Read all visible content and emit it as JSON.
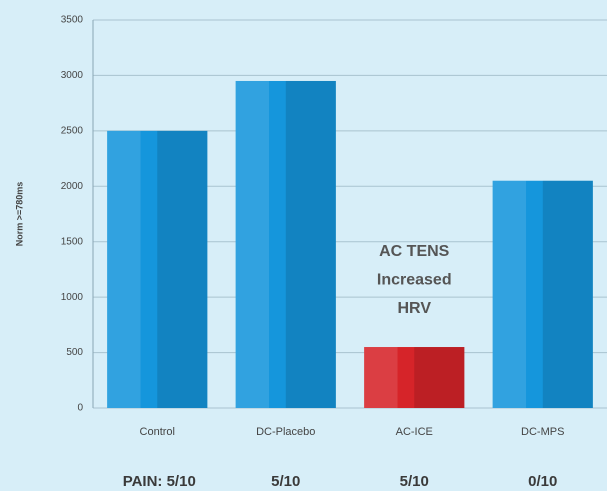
{
  "chart_data": {
    "type": "bar",
    "y_label": "Norm >=780ms",
    "categories": [
      "Control",
      "DC-Placebo",
      "AC-ICE",
      "DC-MPS"
    ],
    "values": [
      2500,
      2950,
      550,
      2050
    ],
    "colors": [
      "#1596dc",
      "#1596dc",
      "#d62429",
      "#1596dc"
    ],
    "ylim": [
      0,
      3500
    ],
    "yticks": [
      0,
      500,
      1000,
      1500,
      2000,
      2500,
      3000,
      3500
    ],
    "grid": true,
    "annotation": [
      "AC TENS",
      "Increased",
      "HRV"
    ],
    "pain_labels": [
      "PAIN: 5/10",
      "5/10",
      "5/10",
      "0/10"
    ]
  }
}
